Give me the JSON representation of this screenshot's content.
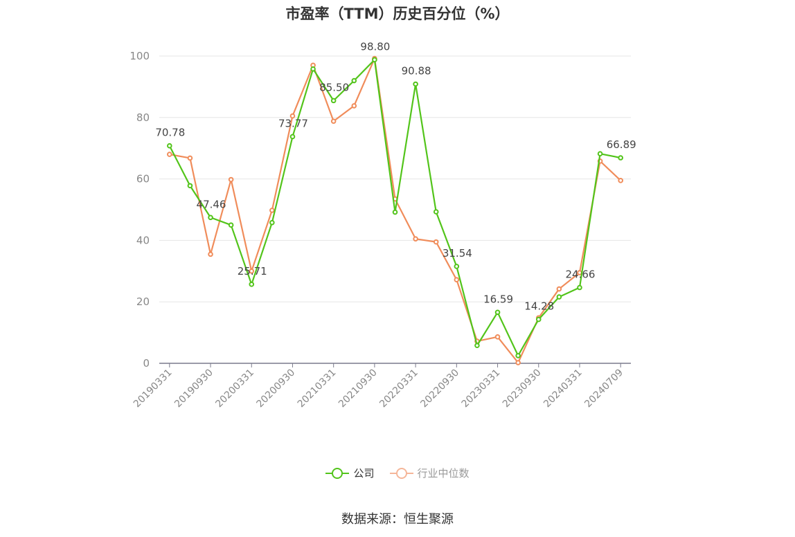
{
  "title": "市盈率（TTM）历史百分位（%）",
  "source": "数据来源：恒生聚源",
  "colors": {
    "company": "#52c41a",
    "industry": "#f08c5a",
    "industry_legend": "#f5b699"
  },
  "legend": {
    "company": "公司",
    "industry": "行业中位数"
  },
  "chart_data": {
    "type": "line",
    "title": "市盈率（TTM）历史百分位（%）",
    "xlabel": "",
    "ylabel": "",
    "ylim": [
      0,
      100
    ],
    "yticks": [
      0,
      20,
      40,
      60,
      80,
      100
    ],
    "grid": true,
    "legend_position": "bottom",
    "x": [
      "20190331",
      "20190630",
      "20190930",
      "20191231",
      "20200331",
      "20200630",
      "20200930",
      "20201231",
      "20210331",
      "20210630",
      "20210930",
      "20211231",
      "20220331",
      "20220630",
      "20220930",
      "20221231",
      "20230331",
      "20230630",
      "20230930",
      "20231231",
      "20240331",
      "20240630",
      "20240709"
    ],
    "x_tick_labels": [
      "20190331",
      "20190930",
      "20200331",
      "20200930",
      "20210331",
      "20210930",
      "20220331",
      "20220930",
      "20230331",
      "20230930",
      "20240331",
      "20240709"
    ],
    "series": [
      {
        "name": "公司",
        "values": [
          70.78,
          57.8,
          47.46,
          45.0,
          25.71,
          45.8,
          73.77,
          95.8,
          85.5,
          92.0,
          98.8,
          49.2,
          90.88,
          49.3,
          31.54,
          5.8,
          16.59,
          2.5,
          14.28,
          21.6,
          24.66,
          68.2,
          66.89
        ],
        "labels": {
          "0": "70.78",
          "2": "47.46",
          "4": "25.71",
          "6": "73.77",
          "8": "85.50",
          "10": "98.80",
          "12": "90.88",
          "14": "31.54",
          "16": "16.59",
          "18": "14.28",
          "20": "24.66",
          "22": "66.89"
        }
      },
      {
        "name": "行业中位数",
        "values": [
          68.0,
          66.8,
          35.5,
          59.8,
          30.0,
          49.8,
          80.5,
          97.0,
          78.8,
          83.8,
          99.2,
          53.5,
          40.5,
          39.5,
          27.2,
          7.2,
          8.6,
          0.2,
          14.8,
          24.2,
          29.5,
          65.8,
          59.5
        ]
      }
    ]
  }
}
